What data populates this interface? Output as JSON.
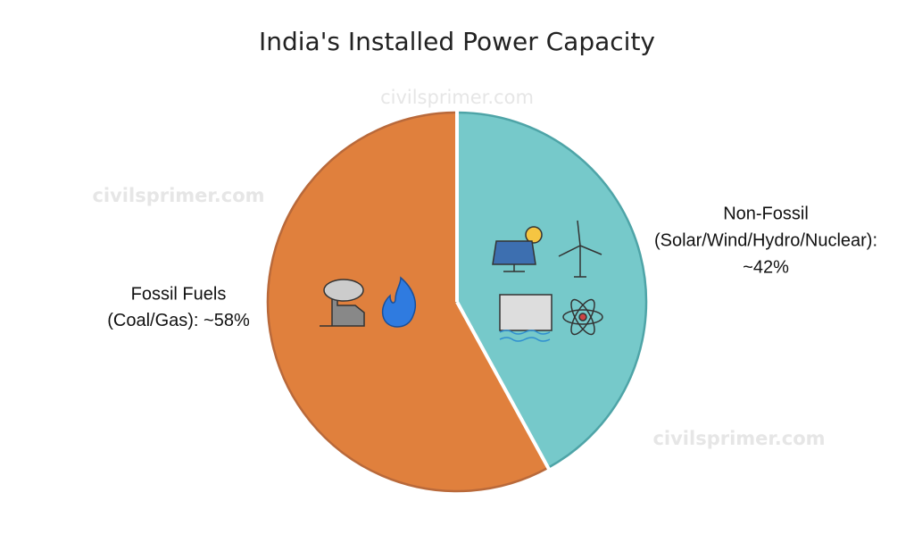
{
  "chart_data": {
    "type": "pie",
    "title": "India's Installed Power Capacity",
    "watermarks": [
      "civilsprimer.com",
      "civilsprimer.com",
      "civilsprimer.com"
    ],
    "categories": [
      "Fossil Fuels",
      "Non-Fossil"
    ],
    "category_details": [
      "(Coal/Gas):",
      "(Solar/Wind/Hydro/Nuclear):"
    ],
    "values": [
      58,
      42
    ],
    "value_labels": [
      "~58%",
      "~42%"
    ],
    "colors": [
      "#e0803d",
      "#76c9ca"
    ],
    "edge_colors": [
      "#b9693a",
      "#4ea4a7"
    ]
  }
}
